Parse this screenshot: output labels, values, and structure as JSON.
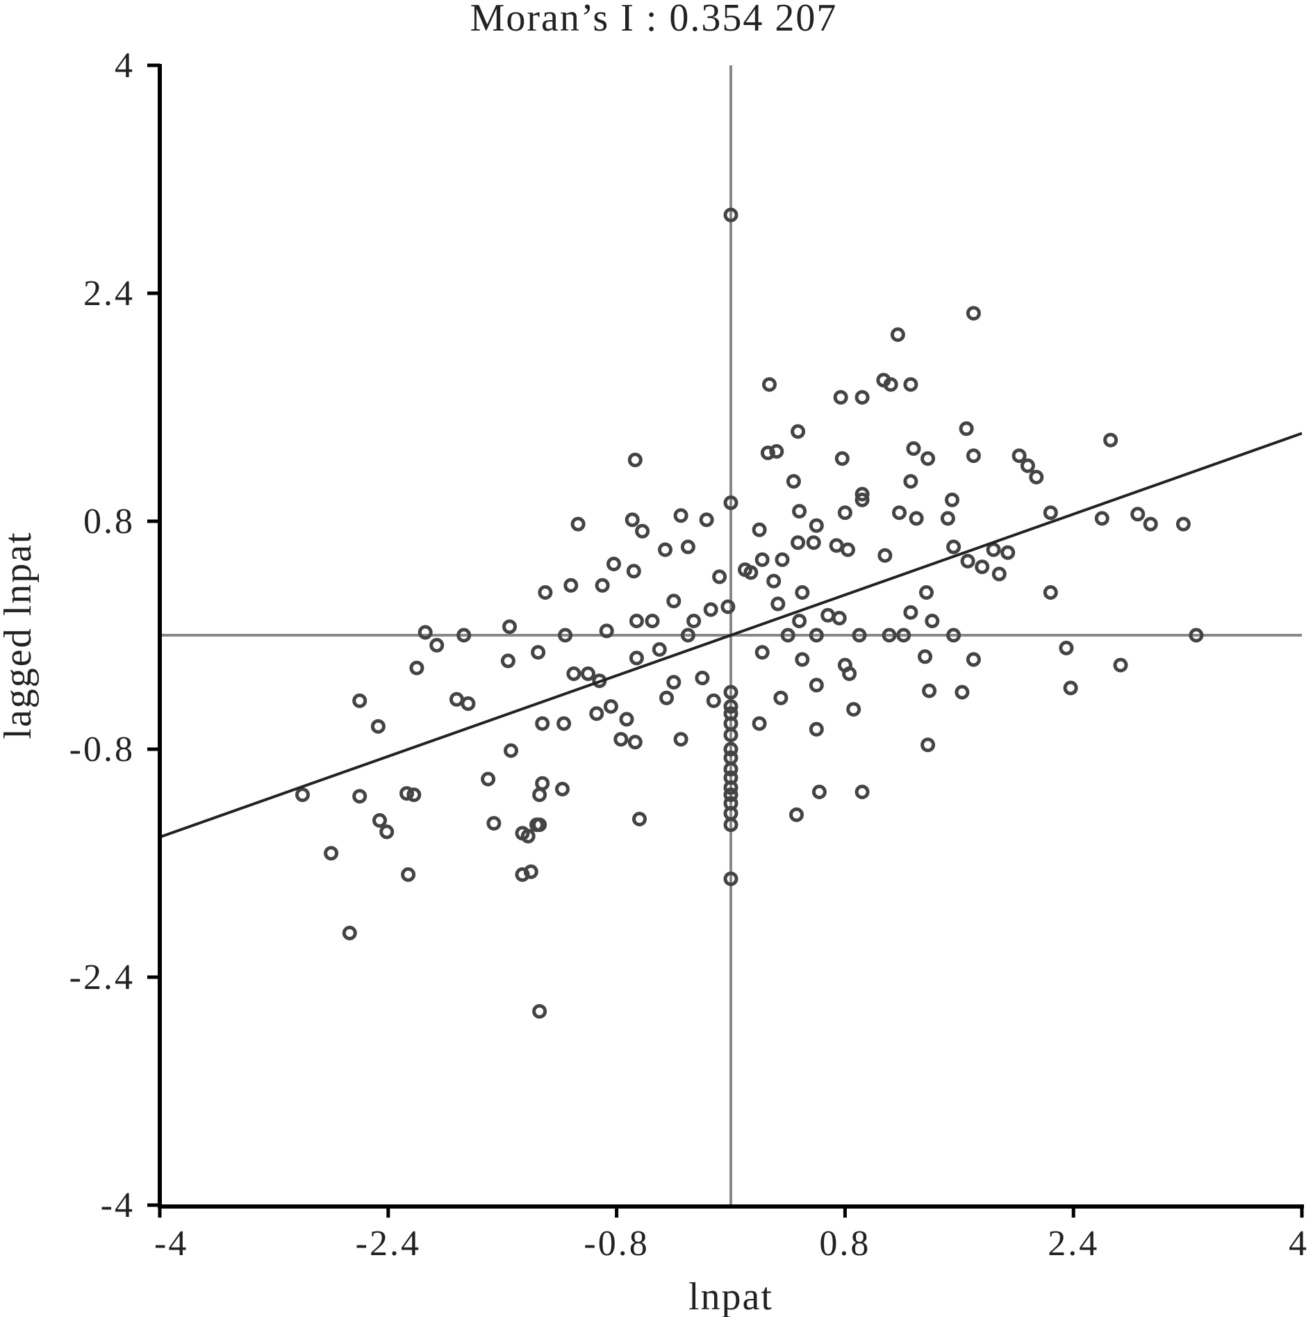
{
  "chart_data": {
    "type": "scatter",
    "title": "Moran’s I : 0.354 207",
    "xlabel": "lnpat",
    "ylabel": "lagged lnpat",
    "xlim": [
      -4,
      4
    ],
    "ylim": [
      -4,
      4
    ],
    "xticks": [
      -4,
      -2.4,
      -0.8,
      0.8,
      2.4,
      4
    ],
    "yticks": [
      -4,
      -2.4,
      -0.8,
      0.8,
      2.4,
      4
    ],
    "xtick_labels": [
      "-4",
      "-2.4",
      "-0.8",
      "0.8",
      "2.4",
      "4"
    ],
    "ytick_labels": [
      "-4",
      "-2.4",
      "-0.8",
      "0.8",
      "2.4",
      "4"
    ],
    "reference_lines": {
      "x": 0,
      "y": 0
    },
    "regression_line": {
      "slope": 0.354207,
      "intercept": 0
    },
    "grid": false,
    "points": [
      [
        0.0,
        2.95
      ],
      [
        1.7,
        2.26
      ],
      [
        1.17,
        2.11
      ],
      [
        0.27,
        1.76
      ],
      [
        0.77,
        1.67
      ],
      [
        0.92,
        1.67
      ],
      [
        1.12,
        1.76
      ],
      [
        1.07,
        1.79
      ],
      [
        1.26,
        1.76
      ],
      [
        1.65,
        1.45
      ],
      [
        2.66,
        1.37
      ],
      [
        0.47,
        1.43
      ],
      [
        0.32,
        1.29
      ],
      [
        0.26,
        1.28
      ],
      [
        0.78,
        1.24
      ],
      [
        1.28,
        1.31
      ],
      [
        1.38,
        1.24
      ],
      [
        1.7,
        1.26
      ],
      [
        2.02,
        1.26
      ],
      [
        2.08,
        1.19
      ],
      [
        2.14,
        1.11
      ],
      [
        -0.67,
        1.23
      ],
      [
        0.44,
        1.08
      ],
      [
        0.92,
        0.99
      ],
      [
        1.26,
        1.08
      ],
      [
        1.55,
        0.95
      ],
      [
        2.24,
        0.86
      ],
      [
        2.6,
        0.82
      ],
      [
        2.85,
        0.85
      ],
      [
        2.94,
        0.78
      ],
      [
        3.17,
        0.78
      ],
      [
        -1.07,
        0.78
      ],
      [
        -0.69,
        0.81
      ],
      [
        -0.62,
        0.73
      ],
      [
        -0.35,
        0.84
      ],
      [
        -0.17,
        0.81
      ],
      [
        0.0,
        0.93
      ],
      [
        0.2,
        0.74
      ],
      [
        0.48,
        0.87
      ],
      [
        0.6,
        0.77
      ],
      [
        0.8,
        0.86
      ],
      [
        0.92,
        0.95
      ],
      [
        1.3,
        0.82
      ],
      [
        1.18,
        0.86
      ],
      [
        1.52,
        0.82
      ],
      [
        1.56,
        0.62
      ],
      [
        1.84,
        0.6
      ],
      [
        1.94,
        0.58
      ],
      [
        0.82,
        0.6
      ],
      [
        0.74,
        0.63
      ],
      [
        0.47,
        0.65
      ],
      [
        0.58,
        0.65
      ],
      [
        0.36,
        0.53
      ],
      [
        -0.68,
        0.45
      ],
      [
        -0.46,
        0.6
      ],
      [
        -0.3,
        0.62
      ],
      [
        0.22,
        0.53
      ],
      [
        0.1,
        0.46
      ],
      [
        -0.9,
        0.35
      ],
      [
        -1.12,
        0.35
      ],
      [
        -0.82,
        0.5
      ],
      [
        -1.3,
        0.3
      ],
      [
        -0.08,
        0.41
      ],
      [
        1.76,
        0.48
      ],
      [
        1.08,
        0.56
      ],
      [
        1.66,
        0.52
      ],
      [
        1.88,
        0.43
      ],
      [
        1.37,
        0.3
      ],
      [
        2.24,
        0.3
      ],
      [
        3.26,
        0.0
      ],
      [
        -1.55,
        0.06
      ],
      [
        -1.16,
        0.0
      ],
      [
        -1.87,
        0.0
      ],
      [
        -2.14,
        0.02
      ],
      [
        -2.06,
        -0.07
      ],
      [
        -0.87,
        0.03
      ],
      [
        -0.66,
        0.1
      ],
      [
        -0.4,
        0.24
      ],
      [
        -0.26,
        0.1
      ],
      [
        -0.02,
        0.2
      ],
      [
        0.33,
        0.22
      ],
      [
        0.48,
        0.1
      ],
      [
        0.68,
        0.14
      ],
      [
        0.76,
        0.12
      ],
      [
        0.9,
        0.0
      ],
      [
        1.11,
        0.0
      ],
      [
        1.21,
        0.0
      ],
      [
        1.26,
        0.16
      ],
      [
        1.41,
        0.1
      ],
      [
        1.56,
        0.0
      ],
      [
        -1.56,
        -0.18
      ],
      [
        -1.35,
        -0.12
      ],
      [
        -0.66,
        -0.16
      ],
      [
        0.22,
        -0.12
      ],
      [
        0.5,
        -0.17
      ],
      [
        0.8,
        -0.21
      ],
      [
        1.36,
        -0.15
      ],
      [
        1.7,
        -0.17
      ],
      [
        2.35,
        -0.09
      ],
      [
        2.73,
        -0.21
      ],
      [
        -1.1,
        -0.27
      ],
      [
        -1.0,
        -0.27
      ],
      [
        -0.92,
        -0.32
      ],
      [
        -0.45,
        -0.44
      ],
      [
        -0.2,
        -0.3
      ],
      [
        -0.4,
        -0.33
      ],
      [
        -2.2,
        -0.23
      ],
      [
        -0.12,
        -0.46
      ],
      [
        0.0,
        -0.4
      ],
      [
        0.0,
        -0.5
      ],
      [
        0.0,
        -0.55
      ],
      [
        0.0,
        -0.62
      ],
      [
        0.0,
        -0.7
      ],
      [
        0.35,
        -0.44
      ],
      [
        0.6,
        -0.35
      ],
      [
        0.83,
        -0.27
      ],
      [
        0.86,
        -0.52
      ],
      [
        1.39,
        -0.39
      ],
      [
        1.62,
        -0.4
      ],
      [
        2.38,
        -0.37
      ],
      [
        -2.6,
        -0.46
      ],
      [
        -1.84,
        -0.48
      ],
      [
        -1.92,
        -0.45
      ],
      [
        -1.32,
        -0.62
      ],
      [
        -1.17,
        -0.62
      ],
      [
        -0.73,
        -0.59
      ],
      [
        -0.67,
        -0.75
      ],
      [
        -0.84,
        -0.5
      ],
      [
        -0.94,
        -0.55
      ],
      [
        -0.35,
        -0.73
      ],
      [
        0.2,
        -0.62
      ],
      [
        0.6,
        -0.66
      ],
      [
        1.38,
        -0.77
      ],
      [
        -0.77,
        -0.73
      ],
      [
        0.0,
        -0.8
      ],
      [
        0.0,
        -0.86
      ],
      [
        0.0,
        -0.94
      ],
      [
        0.0,
        -1.0
      ],
      [
        0.0,
        -1.07
      ],
      [
        0.0,
        -1.12
      ],
      [
        0.0,
        -1.18
      ],
      [
        0.0,
        -1.25
      ],
      [
        0.0,
        -1.33
      ],
      [
        -2.47,
        -0.64
      ],
      [
        -1.54,
        -0.81
      ],
      [
        -1.7,
        -1.01
      ],
      [
        -3.0,
        -1.12
      ],
      [
        -2.6,
        -1.13
      ],
      [
        -2.27,
        -1.11
      ],
      [
        -2.22,
        -1.12
      ],
      [
        -1.32,
        -1.04
      ],
      [
        -1.18,
        -1.08
      ],
      [
        -1.34,
        -1.12
      ],
      [
        -0.64,
        -1.29
      ],
      [
        0.46,
        -1.26
      ],
      [
        0.62,
        -1.1
      ],
      [
        0.92,
        -1.1
      ],
      [
        -2.46,
        -1.3
      ],
      [
        -2.41,
        -1.38
      ],
      [
        -1.66,
        -1.32
      ],
      [
        -1.36,
        -1.33
      ],
      [
        -1.34,
        -1.33
      ],
      [
        -1.42,
        -1.41
      ],
      [
        -1.46,
        -1.39
      ],
      [
        -2.8,
        -1.53
      ],
      [
        -2.26,
        -1.68
      ],
      [
        -1.46,
        -1.68
      ],
      [
        -1.4,
        -1.66
      ],
      [
        -2.67,
        -2.09
      ],
      [
        -1.34,
        -2.64
      ],
      [
        0.0,
        -1.71
      ],
      [
        0.3,
        0.38
      ],
      [
        0.14,
        0.44
      ],
      [
        -0.14,
        0.18
      ],
      [
        0.4,
        0.0
      ],
      [
        -0.3,
        0.0
      ],
      [
        -0.5,
        -0.1
      ],
      [
        0.6,
        0.0
      ],
      [
        0.5,
        0.3
      ],
      [
        -0.55,
        0.1
      ]
    ]
  }
}
